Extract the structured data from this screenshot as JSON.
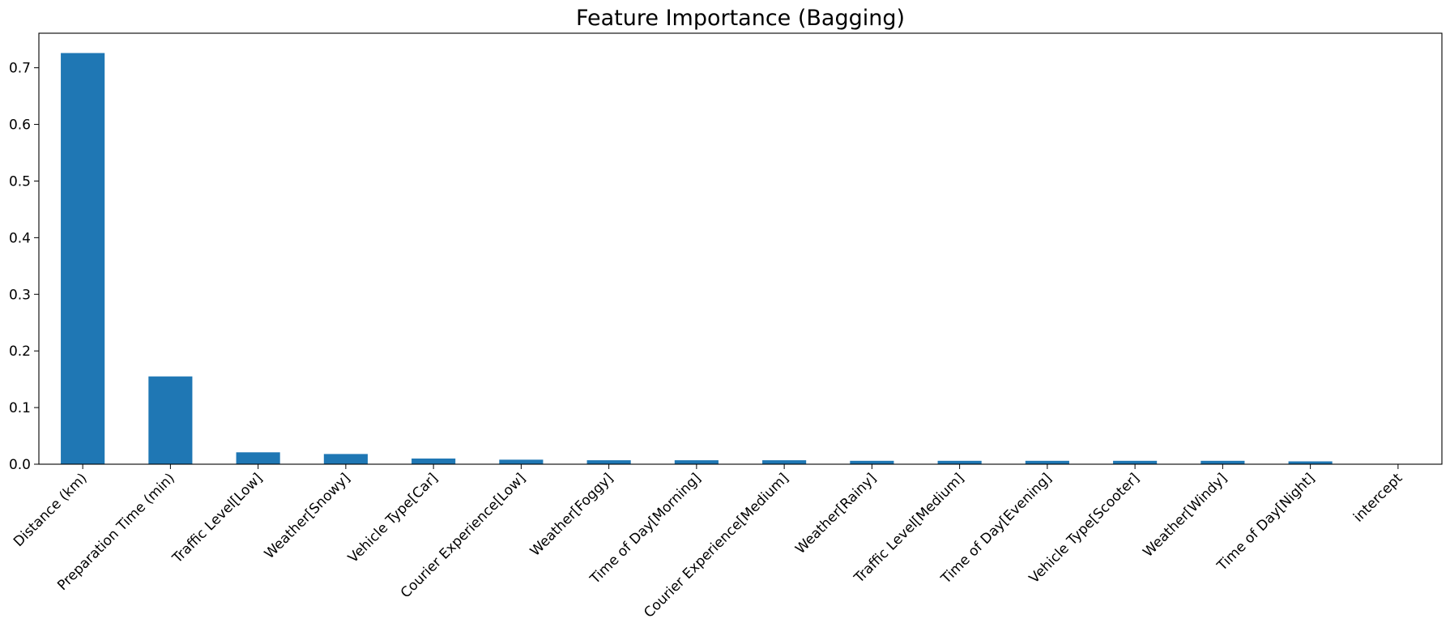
{
  "chart_data": {
    "type": "bar",
    "title": "Feature Importance (Bagging)",
    "xlabel": "",
    "ylabel": "",
    "categories": [
      "Distance (km)",
      "Preparation Time (min)",
      "Traffic Level[Low]",
      "Weather[Snowy]",
      "Vehicle Type[Car]",
      "Courier Experience[Low]",
      "Weather[Foggy]",
      "Time of Day[Morning]",
      "Courier Experience[Medium]",
      "Weather[Rainy]",
      "Traffic Level[Medium]",
      "Time of Day[Evening]",
      "Vehicle Type[Scooter]",
      "Weather[Windy]",
      "Time of Day[Night]",
      "intercept"
    ],
    "values": [
      0.726,
      0.155,
      0.021,
      0.018,
      0.01,
      0.008,
      0.007,
      0.007,
      0.007,
      0.006,
      0.006,
      0.006,
      0.006,
      0.006,
      0.005,
      0.0
    ],
    "ylim": [
      0,
      0.761
    ],
    "yticks": [
      0.0,
      0.1,
      0.2,
      0.3,
      0.4,
      0.5,
      0.6,
      0.7
    ],
    "ytick_labels": [
      "0.0",
      "0.1",
      "0.2",
      "0.3",
      "0.4",
      "0.5",
      "0.6",
      "0.7"
    ],
    "bar_color": "#1f77b4",
    "grid": false,
    "legend": false
  }
}
